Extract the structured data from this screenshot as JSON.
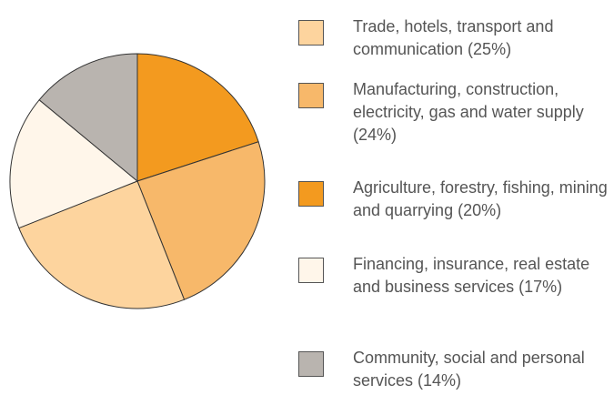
{
  "chart_data": {
    "type": "pie",
    "categories": [
      "Trade, hotels, transport and communication (25%)",
      "Manufacturing, construction, electricity, gas and water supply (24%)",
      "Agriculture, forestry, fishing, mining and quarrying (20%)",
      "Financing, insurance, real estate and business services (17%)",
      "Community, social and personal services (14%)"
    ],
    "values": [
      25,
      24,
      20,
      17,
      14
    ],
    "colors": [
      "#fdd49e",
      "#f7b86a",
      "#f39a1f",
      "#fff6ea",
      "#b9b4af"
    ]
  }
}
